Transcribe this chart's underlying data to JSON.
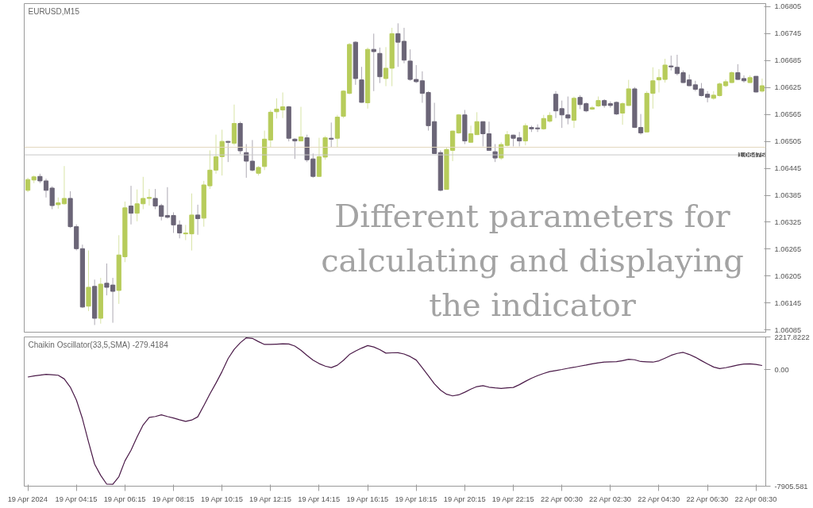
{
  "chart_data": [
    {
      "type": "candlestick",
      "title": "EURUSD,M15",
      "categories": [
        null,
        null,
        null,
        null,
        null,
        null,
        null,
        null,
        null,
        null,
        null,
        null,
        null,
        null,
        null,
        null,
        null,
        null,
        null,
        null,
        null,
        null,
        null,
        null,
        null,
        null,
        null,
        null,
        null,
        null,
        null,
        null,
        null,
        null,
        null,
        null,
        null,
        null,
        null,
        null,
        null,
        null,
        null,
        null,
        null,
        null,
        null,
        null,
        null,
        null,
        null,
        null,
        null,
        null,
        null,
        null,
        null,
        null,
        null,
        null,
        null,
        null,
        null,
        null,
        null,
        null,
        null,
        null,
        null,
        null,
        null,
        null,
        null,
        null,
        null,
        null,
        null,
        null,
        null,
        null,
        null,
        null,
        null,
        null,
        null,
        null,
        null,
        null,
        null,
        null,
        null,
        null,
        null,
        null,
        null,
        null,
        null,
        null,
        null,
        null,
        null,
        null,
        null,
        null,
        null,
        null,
        null,
        null,
        null,
        null,
        null,
        null,
        null,
        null,
        null,
        null,
        null,
        null,
        null,
        null,
        null,
        null
      ],
      "ohlc": [
        [
          1.06396,
          1.06424,
          1.06392,
          1.0642
        ],
        [
          1.06419,
          1.06429,
          1.06412,
          1.06426
        ],
        [
          1.06427,
          1.06433,
          1.06412,
          1.06417
        ],
        [
          1.06417,
          1.06422,
          1.0638,
          1.06396
        ],
        [
          1.06401,
          1.06405,
          1.06354,
          1.06362
        ],
        [
          1.06364,
          1.0638,
          1.06355,
          1.06368
        ],
        [
          1.06366,
          1.0645,
          1.06364,
          1.06378
        ],
        [
          1.06378,
          1.06394,
          1.06312,
          1.06315
        ],
        [
          1.06315,
          1.0632,
          1.06262,
          1.06266
        ],
        [
          1.06266,
          1.06275,
          1.06134,
          1.06136
        ],
        [
          1.06138,
          1.06262,
          1.06127,
          1.0618
        ],
        [
          1.06182,
          1.06197,
          1.06096,
          1.06111
        ],
        [
          1.06111,
          1.06201,
          1.06099,
          1.06187
        ],
        [
          1.06189,
          1.06233,
          1.06162,
          1.0618
        ],
        [
          1.06185,
          1.06201,
          1.06101,
          1.06171
        ],
        [
          1.06173,
          1.06296,
          1.06143,
          1.06252
        ],
        [
          1.06248,
          1.06371,
          1.06236,
          1.06357
        ],
        [
          1.06361,
          1.06406,
          1.0632,
          1.06345
        ],
        [
          1.06345,
          1.06398,
          1.06327,
          1.06366
        ],
        [
          1.06366,
          1.06426,
          1.06354,
          1.06378
        ],
        [
          1.06378,
          1.06399,
          1.06362,
          1.0638
        ],
        [
          1.06378,
          1.06399,
          1.06354,
          1.06361
        ],
        [
          1.06362,
          1.06366,
          1.06329,
          1.06338
        ],
        [
          1.0634,
          1.06403,
          1.06333,
          1.06336
        ],
        [
          1.0634,
          1.06347,
          1.06301,
          1.06319
        ],
        [
          1.06319,
          1.06329,
          1.06289,
          1.06301
        ],
        [
          1.06299,
          1.06319,
          1.06285,
          1.06301
        ],
        [
          1.06299,
          1.06389,
          1.06262,
          1.06341
        ],
        [
          1.06341,
          1.06364,
          1.06297,
          1.06333
        ],
        [
          1.06334,
          1.06417,
          1.06315,
          1.06408
        ],
        [
          1.06406,
          1.06485,
          1.06399,
          1.06441
        ],
        [
          1.06441,
          1.0652,
          1.06433,
          1.06471
        ],
        [
          1.06471,
          1.06531,
          1.06429,
          1.06505
        ],
        [
          1.06505,
          1.06506,
          1.06459,
          1.06503
        ],
        [
          1.06501,
          1.06587,
          1.06496,
          1.06545
        ],
        [
          1.06545,
          1.06549,
          1.06477,
          1.06484
        ],
        [
          1.0648,
          1.06499,
          1.06424,
          1.06461
        ],
        [
          1.06461,
          1.06508,
          1.06438,
          1.06441
        ],
        [
          1.06434,
          1.0645,
          1.06429,
          1.06447
        ],
        [
          1.06449,
          1.06529,
          1.06441,
          1.0651
        ],
        [
          1.06508,
          1.06575,
          1.06491,
          1.0657
        ],
        [
          1.06571,
          1.06601,
          1.06556,
          1.06577
        ],
        [
          1.06575,
          1.06614,
          1.06557,
          1.06582
        ],
        [
          1.06582,
          1.06584,
          1.06505,
          1.06512
        ],
        [
          1.0651,
          1.06512,
          1.06466,
          1.06506
        ],
        [
          1.06506,
          1.06582,
          1.06505,
          1.06515
        ],
        [
          1.06513,
          1.0652,
          1.06459,
          1.06464
        ],
        [
          1.06466,
          1.06478,
          1.06424,
          1.06427
        ],
        [
          1.06427,
          1.06513,
          1.06426,
          1.06471
        ],
        [
          1.0647,
          1.06517,
          1.06464,
          1.06513
        ],
        [
          1.06512,
          1.06547,
          1.06491,
          1.0651
        ],
        [
          1.06512,
          1.06564,
          1.06491,
          1.06559
        ],
        [
          1.06561,
          1.06619,
          1.06557,
          1.06617
        ],
        [
          1.06612,
          1.06724,
          1.0661,
          1.06721
        ],
        [
          1.06726,
          1.06728,
          1.06631,
          1.06645
        ],
        [
          1.06642,
          1.06671,
          1.06591,
          1.06592
        ],
        [
          1.06591,
          1.06714,
          1.06578,
          1.0671
        ],
        [
          1.0671,
          1.06745,
          1.06617,
          1.06705
        ],
        [
          1.06701,
          1.06714,
          1.06635,
          1.06649
        ],
        [
          1.06645,
          1.06715,
          1.06628,
          1.06668
        ],
        [
          1.06668,
          1.06758,
          1.06628,
          1.06745
        ],
        [
          1.06745,
          1.06768,
          1.06671,
          1.06726
        ],
        [
          1.06728,
          1.06758,
          1.06679,
          1.06686
        ],
        [
          1.06684,
          1.0671,
          1.0664,
          1.06643
        ],
        [
          1.06643,
          1.06675,
          1.06635,
          1.06638
        ],
        [
          1.0664,
          1.06661,
          1.06591,
          1.06612
        ],
        [
          1.06614,
          1.06617,
          1.06529,
          1.0654
        ],
        [
          1.06549,
          1.06591,
          1.06477,
          1.06478
        ],
        [
          1.0648,
          1.06485,
          1.06394,
          1.06396
        ],
        [
          1.06398,
          1.06491,
          1.06398,
          1.06487
        ],
        [
          1.06485,
          1.06529,
          1.06461,
          1.06528
        ],
        [
          1.06524,
          1.06566,
          1.06522,
          1.06564
        ],
        [
          1.06564,
          1.06575,
          1.06499,
          1.06506
        ],
        [
          1.06503,
          1.0654,
          1.06503,
          1.06522
        ],
        [
          1.0652,
          1.0657,
          1.0652,
          1.06549
        ],
        [
          1.06549,
          1.06549,
          1.06494,
          1.06522
        ],
        [
          1.06522,
          1.06549,
          1.06485,
          1.06485
        ],
        [
          1.06482,
          1.06499,
          1.06459,
          1.06468
        ],
        [
          1.06468,
          1.06503,
          1.06464,
          1.06498
        ],
        [
          1.06496,
          1.06528,
          1.06494,
          1.0652
        ],
        [
          1.06519,
          1.0652,
          1.06494,
          1.06512
        ],
        [
          1.06513,
          1.06526,
          1.06494,
          1.06506
        ],
        [
          1.06506,
          1.06545,
          1.06496,
          1.0654
        ],
        [
          1.06536,
          1.0654,
          1.06526,
          1.06533
        ],
        [
          1.06535,
          1.06543,
          1.06526,
          1.06533
        ],
        [
          1.06533,
          1.06564,
          1.06531,
          1.06556
        ],
        [
          1.0655,
          1.0657,
          1.06547,
          1.06563
        ],
        [
          1.0661,
          1.06617,
          1.06557,
          1.06573
        ],
        [
          1.06578,
          1.06596,
          1.06535,
          1.06564
        ],
        [
          1.06564,
          1.06605,
          1.06543,
          1.06557
        ],
        [
          1.06552,
          1.06605,
          1.06535,
          1.06601
        ],
        [
          1.06603,
          1.06608,
          1.06577,
          1.06587
        ],
        [
          1.06589,
          1.06592,
          1.0657,
          1.06573
        ],
        [
          1.06577,
          1.06584,
          1.06575,
          1.0658
        ],
        [
          1.06584,
          1.06605,
          1.06582,
          1.06596
        ],
        [
          1.06596,
          1.06599,
          1.0658,
          1.06585
        ],
        [
          1.06589,
          1.06594,
          1.0658,
          1.06585
        ],
        [
          1.06592,
          1.06594,
          1.06564,
          1.06566
        ],
        [
          1.06568,
          1.06592,
          1.06542,
          1.06589
        ],
        [
          1.06585,
          1.06642,
          1.06584,
          1.06622
        ],
        [
          1.06622,
          1.06626,
          1.06535,
          1.06536
        ],
        [
          1.06536,
          1.06566,
          1.0652,
          1.06524
        ],
        [
          1.06526,
          1.06617,
          1.06526,
          1.06612
        ],
        [
          1.06612,
          1.0667,
          1.06578,
          1.0664
        ],
        [
          1.06642,
          1.06666,
          1.06614,
          1.06647
        ],
        [
          1.06643,
          1.06689,
          1.06636,
          1.06675
        ],
        [
          1.06673,
          1.06696,
          1.06663,
          1.06671
        ],
        [
          1.0667,
          1.06698,
          1.06652,
          1.06656
        ],
        [
          1.06658,
          1.06663,
          1.06635,
          1.06636
        ],
        [
          1.06642,
          1.06654,
          1.06628,
          1.06629
        ],
        [
          1.06631,
          1.0664,
          1.06617,
          1.06621
        ],
        [
          1.06622,
          1.06635,
          1.06605,
          1.06607
        ],
        [
          1.0661,
          1.06617,
          1.06592,
          1.06603
        ],
        [
          1.06601,
          1.06617,
          1.06598,
          1.06608
        ],
        [
          1.06607,
          1.06636,
          1.06605,
          1.06633
        ],
        [
          1.06629,
          1.06643,
          1.06626,
          1.06638
        ],
        [
          1.06636,
          1.06661,
          1.06635,
          1.06658
        ],
        [
          1.06658,
          1.06677,
          1.06642,
          1.06643
        ],
        [
          1.06645,
          1.06652,
          1.06636,
          1.0664
        ],
        [
          1.06636,
          1.06652,
          1.06635,
          1.06647
        ],
        [
          1.0665,
          1.0665,
          1.06614,
          1.06615
        ],
        [
          1.06617,
          1.06645,
          1.06614,
          1.06629
        ]
      ],
      "colors": [
        "#b7cc5b",
        "#b7cc5b",
        "#6b6577",
        "#6b6577",
        "#6b6577",
        "#b7cc5b",
        "#b7cc5b",
        "#6b6577",
        "#6b6577",
        "#6b6577",
        "#b7cc5b",
        "#6b6577",
        "#b7cc5b",
        "#6b6577",
        "#6b6577",
        "#b7cc5b",
        "#b7cc5b",
        "#6b6577",
        "#b7cc5b",
        "#b7cc5b",
        "#b7cc5b",
        "#6b6577",
        "#6b6577",
        "#6b6577",
        "#6b6577",
        "#6b6577",
        "#b7cc5b",
        "#b7cc5b",
        "#6b6577",
        "#b7cc5b",
        "#b7cc5b",
        "#b7cc5b",
        "#b7cc5b",
        "#6b6577",
        "#b7cc5b",
        "#6b6577",
        "#6b6577",
        "#6b6577",
        "#b7cc5b",
        "#b7cc5b",
        "#b7cc5b",
        "#b7cc5b",
        "#b7cc5b",
        "#6b6577",
        "#6b6577",
        "#b7cc5b",
        "#6b6577",
        "#6b6577",
        "#b7cc5b",
        "#b7cc5b",
        "#6b6577",
        "#b7cc5b",
        "#b7cc5b",
        "#b7cc5b",
        "#6b6577",
        "#6b6577",
        "#b7cc5b",
        "#6b6577",
        "#6b6577",
        "#b7cc5b",
        "#b7cc5b",
        "#6b6577",
        "#6b6577",
        "#6b6577",
        "#6b6577",
        "#6b6577",
        "#6b6577",
        "#6b6577",
        "#6b6577",
        "#b7cc5b",
        "#b7cc5b",
        "#b7cc5b",
        "#6b6577",
        "#b7cc5b",
        "#b7cc5b",
        "#6b6577",
        "#6b6577",
        "#6b6577",
        "#b7cc5b",
        "#b7cc5b",
        "#6b6577",
        "#6b6577",
        "#b7cc5b",
        "#6b6577",
        "#6b6577",
        "#b7cc5b",
        "#b7cc5b",
        "#6b6577",
        "#6b6577",
        "#6b6577",
        "#b7cc5b",
        "#6b6577",
        "#6b6577",
        "#b7cc5b",
        "#b7cc5b",
        "#6b6577",
        "#6b6577",
        "#6b6577",
        "#b7cc5b",
        "#b7cc5b",
        "#6b6577",
        "#6b6577",
        "#b7cc5b",
        "#b7cc5b",
        "#b7cc5b",
        "#b7cc5b",
        "#6b6577",
        "#6b6577",
        "#6b6577",
        "#6b6577",
        "#6b6577",
        "#6b6577",
        "#6b6577",
        "#b7cc5b",
        "#b7cc5b",
        "#b7cc5b",
        "#b7cc5b",
        "#6b6577",
        "#6b6577",
        "#b7cc5b",
        "#6b6577",
        "#b7cc5b"
      ],
      "ylim": [
        1.0608,
        1.06812
      ],
      "yticks": [
        1.06085,
        1.06145,
        1.06205,
        1.06265,
        1.06325,
        1.06385,
        1.06445,
        1.06505,
        1.06565,
        1.06625,
        1.06685,
        1.06745,
        1.06805
      ],
      "grid": false,
      "ref_lines": [
        {
          "axis": "y",
          "value": 1.06492,
          "color": "#e3d7bf"
        },
        {
          "axis": "y",
          "value": 1.06475,
          "label": "1.06475",
          "color": "#c8c8c8"
        }
      ],
      "annotations": [
        "Different parameters for\ncalculating and displaying\nthe indicator"
      ]
    },
    {
      "type": "line",
      "title": "Chaikin Oscillator(33,5,SMA) -279.4184",
      "categories": [
        "19 Apr 2024",
        null,
        null,
        null,
        null,
        null,
        null,
        null,
        "19 Apr 04:15",
        null,
        null,
        null,
        null,
        null,
        null,
        null,
        "19 Apr 06:15",
        null,
        null,
        null,
        null,
        null,
        null,
        null,
        "19 Apr 08:15",
        null,
        null,
        null,
        null,
        null,
        null,
        null,
        "19 Apr 10:15",
        null,
        null,
        null,
        null,
        null,
        null,
        null,
        "19 Apr 12:15",
        null,
        null,
        null,
        null,
        null,
        null,
        null,
        "19 Apr 14:15",
        null,
        null,
        null,
        null,
        null,
        null,
        null,
        "19 Apr 16:15",
        null,
        null,
        null,
        null,
        null,
        null,
        null,
        "19 Apr 18:15",
        null,
        null,
        null,
        null,
        null,
        null,
        null,
        "19 Apr 20:15",
        null,
        null,
        null,
        null,
        null,
        null,
        null,
        "19 Apr 22:15",
        null,
        null,
        null,
        null,
        null,
        null,
        null,
        "22 Apr 00:30",
        null,
        null,
        null,
        null,
        null,
        null,
        null,
        "22 Apr 02:30",
        null,
        null,
        null,
        null,
        null,
        null,
        null,
        "22 Apr 04:30",
        null,
        null,
        null,
        null,
        null,
        null,
        null,
        "22 Apr 06:30",
        null,
        null,
        null,
        null,
        null,
        null,
        null,
        "22 Apr 08:30",
        null
      ],
      "series": [
        {
          "color": "#4a1a48",
          "values": [
            -500,
            -430,
            -370,
            -320,
            -350,
            -380,
            -630,
            -1190,
            -2060,
            -3330,
            -4910,
            -6410,
            -7170,
            -7770,
            -7780,
            -7260,
            -6190,
            -5470,
            -4570,
            -3750,
            -3240,
            -3180,
            -3070,
            -3180,
            -3280,
            -3400,
            -3510,
            -3420,
            -3200,
            -2440,
            -1650,
            -910,
            -130,
            750,
            1380,
            1820,
            2160,
            2120,
            1900,
            1710,
            1710,
            1730,
            1750,
            1740,
            1600,
            1320,
            970,
            640,
            410,
            240,
            140,
            300,
            630,
            1030,
            1260,
            1460,
            1630,
            1540,
            1360,
            1120,
            1140,
            1150,
            1060,
            890,
            650,
            120,
            -420,
            -970,
            -1390,
            -1670,
            -1780,
            -1710,
            -1530,
            -1320,
            -1150,
            -1090,
            -1190,
            -1240,
            -1280,
            -1240,
            -1210,
            -1020,
            -790,
            -580,
            -410,
            -260,
            -130,
            -60,
            10,
            90,
            160,
            240,
            310,
            390,
            460,
            510,
            530,
            540,
            610,
            700,
            670,
            550,
            530,
            510,
            600,
            780,
            970,
            1100,
            1170,
            1030,
            840,
            610,
            390,
            180,
            70,
            130,
            220,
            310,
            380,
            390,
            350,
            280
          ]
        }
      ],
      "ylim": [
        -7905.581,
        2217.8222
      ],
      "yticks": [
        {
          "value": 2217.8222,
          "label": "2217.8222"
        },
        {
          "value": 0,
          "label": "0.00"
        },
        {
          "value": -7905.581,
          "label": "-7905.581"
        }
      ],
      "grid": false,
      "line_style": "solid"
    }
  ]
}
